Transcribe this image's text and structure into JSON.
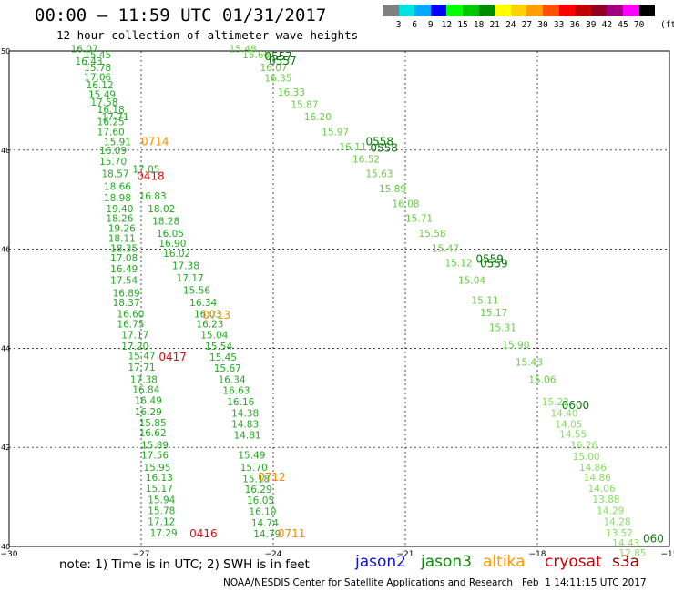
{
  "header": {
    "title": "00:00 — 11:59 UTC 01/31/2017",
    "subtitle": "12 hour collection of altimeter wave heights"
  },
  "legend": {
    "unit": "(ft)",
    "stops": [
      {
        "label": "3",
        "color": "#808080"
      },
      {
        "label": "6",
        "color": "#00e0e0"
      },
      {
        "label": "9",
        "color": "#00a8ff"
      },
      {
        "label": "12",
        "color": "#0000ff"
      },
      {
        "label": "15",
        "color": "#00ff00"
      },
      {
        "label": "18",
        "color": "#00c800"
      },
      {
        "label": "21",
        "color": "#008a00"
      },
      {
        "label": "24",
        "color": "#ffff00"
      },
      {
        "label": "27",
        "color": "#ffd200"
      },
      {
        "label": "30",
        "color": "#ffa000"
      },
      {
        "label": "33",
        "color": "#ff5000"
      },
      {
        "label": "36",
        "color": "#ff0000"
      },
      {
        "label": "39",
        "color": "#c00000"
      },
      {
        "label": "42",
        "color": "#900020"
      },
      {
        "label": "45",
        "color": "#a00080"
      },
      {
        "label": "70",
        "color": "#ff00ff"
      },
      {
        "label": "",
        "color": "#000000"
      }
    ]
  },
  "map": {
    "lon_ticks": [
      "−30",
      "−27",
      "−24",
      "−21",
      "−18",
      "−15"
    ],
    "lat_ticks": [
      "50",
      "48",
      "46",
      "44",
      "42",
      "40"
    ]
  },
  "chart_data": {
    "type": "scatter",
    "tracks": [
      {
        "name": "track-1",
        "color": "#22aa22",
        "points": [
          {
            "lon": -28.6,
            "lat": 49.97,
            "v": "16.07"
          },
          {
            "lon": -28.3,
            "lat": 49.85,
            "v": "15.45"
          },
          {
            "lon": -28.5,
            "lat": 49.72,
            "v": "16.43"
          },
          {
            "lon": -28.3,
            "lat": 49.6,
            "v": "15.78"
          },
          {
            "lon": -28.3,
            "lat": 49.4,
            "v": "17.06"
          },
          {
            "lon": -28.25,
            "lat": 49.25,
            "v": "16.12"
          },
          {
            "lon": -28.2,
            "lat": 49.05,
            "v": "15.49"
          },
          {
            "lon": -28.15,
            "lat": 48.9,
            "v": "17.58"
          },
          {
            "lon": -28.0,
            "lat": 48.75,
            "v": "16.18"
          },
          {
            "lon": -27.9,
            "lat": 48.6,
            "v": "17.71"
          },
          {
            "lon": -28.0,
            "lat": 48.5,
            "v": "16.25"
          },
          {
            "lon": -28.0,
            "lat": 48.3,
            "v": "17.60"
          },
          {
            "lon": -27.85,
            "lat": 48.1,
            "v": "15.91"
          },
          {
            "lon": -27.95,
            "lat": 47.92,
            "v": "16.09"
          },
          {
            "lon": -27.95,
            "lat": 47.7,
            "v": "15.70"
          },
          {
            "lon": -27.9,
            "lat": 47.45,
            "v": "18.57"
          },
          {
            "lon": -27.85,
            "lat": 47.2,
            "v": "18.66"
          },
          {
            "lon": -27.85,
            "lat": 46.97,
            "v": "18.98"
          },
          {
            "lon": -27.8,
            "lat": 46.75,
            "v": "19.40"
          },
          {
            "lon": -27.8,
            "lat": 46.55,
            "v": "18.26"
          },
          {
            "lon": -27.75,
            "lat": 46.35,
            "v": "19.26"
          },
          {
            "lon": -27.75,
            "lat": 46.15,
            "v": "18.11"
          },
          {
            "lon": -27.7,
            "lat": 45.95,
            "v": "18.35"
          },
          {
            "lon": -27.7,
            "lat": 45.75,
            "v": "17.08"
          },
          {
            "lon": -27.7,
            "lat": 45.53,
            "v": "16.49"
          },
          {
            "lon": -27.7,
            "lat": 45.3,
            "v": "17.54"
          },
          {
            "lon": -27.65,
            "lat": 45.05,
            "v": "16.89"
          },
          {
            "lon": -27.65,
            "lat": 44.85,
            "v": "18.37"
          },
          {
            "lon": -27.55,
            "lat": 44.62,
            "v": "16.60"
          },
          {
            "lon": -27.55,
            "lat": 44.42,
            "v": "16.75"
          },
          {
            "lon": -27.45,
            "lat": 44.2,
            "v": "17.17"
          },
          {
            "lon": -27.45,
            "lat": 43.97,
            "v": "17.20"
          },
          {
            "lon": -27.3,
            "lat": 43.78,
            "v": "15.47"
          },
          {
            "lon": -27.3,
            "lat": 43.55,
            "v": "17.71"
          },
          {
            "lon": -27.25,
            "lat": 43.3,
            "v": "17.38"
          },
          {
            "lon": -27.2,
            "lat": 43.1,
            "v": "16.84"
          },
          {
            "lon": -27.15,
            "lat": 42.88,
            "v": "16.49"
          },
          {
            "lon": -27.15,
            "lat": 42.65,
            "v": "16.29"
          },
          {
            "lon": -27.05,
            "lat": 42.43,
            "v": "15.85"
          },
          {
            "lon": -27.05,
            "lat": 42.22,
            "v": "16.62"
          },
          {
            "lon": -27.0,
            "lat": 41.98,
            "v": "15.89"
          },
          {
            "lon": -27.0,
            "lat": 41.77,
            "v": "17.56"
          },
          {
            "lon": -26.95,
            "lat": 41.53,
            "v": "15.95"
          },
          {
            "lon": -26.9,
            "lat": 41.32,
            "v": "16.13"
          },
          {
            "lon": -26.9,
            "lat": 41.1,
            "v": "15.17"
          },
          {
            "lon": -26.85,
            "lat": 40.87,
            "v": "15.94"
          },
          {
            "lon": -26.85,
            "lat": 40.65,
            "v": "15.78"
          },
          {
            "lon": -26.85,
            "lat": 40.43,
            "v": "17.12"
          },
          {
            "lon": -26.8,
            "lat": 40.2,
            "v": "17.29"
          }
        ]
      },
      {
        "name": "track-2",
        "color": "#22aa22",
        "points": [
          {
            "lon": -27.2,
            "lat": 47.55,
            "v": "17.05"
          },
          {
            "lon": -27.05,
            "lat": 47.0,
            "v": "16.83"
          },
          {
            "lon": -26.85,
            "lat": 46.75,
            "v": "18.02"
          },
          {
            "lon": -26.75,
            "lat": 46.5,
            "v": "18.28"
          },
          {
            "lon": -26.65,
            "lat": 46.25,
            "v": "16.05"
          },
          {
            "lon": -26.6,
            "lat": 46.05,
            "v": "16.90"
          },
          {
            "lon": -26.5,
            "lat": 45.85,
            "v": "16.02"
          },
          {
            "lon": -26.3,
            "lat": 45.6,
            "v": "17.38"
          },
          {
            "lon": -26.2,
            "lat": 45.35,
            "v": "17.17"
          },
          {
            "lon": -26.05,
            "lat": 45.1,
            "v": "15.56"
          },
          {
            "lon": -25.9,
            "lat": 44.85,
            "v": "16.34"
          },
          {
            "lon": -25.8,
            "lat": 44.62,
            "v": "16.03"
          },
          {
            "lon": -25.75,
            "lat": 44.42,
            "v": "16.23"
          },
          {
            "lon": -25.65,
            "lat": 44.2,
            "v": "15.04"
          },
          {
            "lon": -25.55,
            "lat": 43.97,
            "v": "15.54"
          },
          {
            "lon": -25.45,
            "lat": 43.75,
            "v": "15.45"
          },
          {
            "lon": -25.35,
            "lat": 43.53,
            "v": "15.67"
          },
          {
            "lon": -25.25,
            "lat": 43.3,
            "v": "16.34"
          },
          {
            "lon": -25.15,
            "lat": 43.08,
            "v": "16.63"
          },
          {
            "lon": -25.05,
            "lat": 42.85,
            "v": "16.16"
          },
          {
            "lon": -24.95,
            "lat": 42.62,
            "v": "14.38"
          },
          {
            "lon": -24.95,
            "lat": 42.4,
            "v": "14.83"
          },
          {
            "lon": -24.9,
            "lat": 42.18,
            "v": "14.81"
          },
          {
            "lon": -24.8,
            "lat": 41.77,
            "v": "15.49"
          },
          {
            "lon": -24.75,
            "lat": 41.53,
            "v": "15.70"
          },
          {
            "lon": -24.7,
            "lat": 41.3,
            "v": "15.18"
          },
          {
            "lon": -24.65,
            "lat": 41.08,
            "v": "16.29"
          },
          {
            "lon": -24.6,
            "lat": 40.86,
            "v": "16.05"
          },
          {
            "lon": -24.55,
            "lat": 40.63,
            "v": "16.10"
          },
          {
            "lon": -24.5,
            "lat": 40.4,
            "v": "14.74"
          },
          {
            "lon": -24.45,
            "lat": 40.18,
            "v": "14.79"
          }
        ]
      },
      {
        "name": "track-3",
        "color": "#66cc44",
        "points": [
          {
            "lon": -25.0,
            "lat": 49.97,
            "v": "15.48"
          },
          {
            "lon": -24.7,
            "lat": 49.85,
            "v": "15.66"
          },
          {
            "lon": -24.3,
            "lat": 49.6,
            "v": "16.07"
          },
          {
            "lon": -24.2,
            "lat": 49.38,
            "v": "16.35"
          },
          {
            "lon": -23.9,
            "lat": 49.1,
            "v": "16.33"
          },
          {
            "lon": -23.6,
            "lat": 48.85,
            "v": "15.87"
          },
          {
            "lon": -23.3,
            "lat": 48.6,
            "v": "16.20"
          },
          {
            "lon": -22.9,
            "lat": 48.3,
            "v": "15.97"
          },
          {
            "lon": -22.5,
            "lat": 48.0,
            "v": "16.11"
          },
          {
            "lon": -22.2,
            "lat": 47.75,
            "v": "16.52"
          },
          {
            "lon": -21.9,
            "lat": 47.45,
            "v": "15.63"
          },
          {
            "lon": -21.6,
            "lat": 47.15,
            "v": "15.89"
          },
          {
            "lon": -21.3,
            "lat": 46.85,
            "v": "16.08"
          },
          {
            "lon": -21.0,
            "lat": 46.55,
            "v": "15.71"
          },
          {
            "lon": -20.7,
            "lat": 46.25,
            "v": "15.58"
          },
          {
            "lon": -20.4,
            "lat": 45.95,
            "v": "15.47"
          },
          {
            "lon": -20.1,
            "lat": 45.65,
            "v": "15.12"
          },
          {
            "lon": -19.8,
            "lat": 45.3,
            "v": "15.04"
          },
          {
            "lon": -19.5,
            "lat": 44.9,
            "v": "15.11"
          },
          {
            "lon": -19.3,
            "lat": 44.65,
            "v": "15.17"
          },
          {
            "lon": -19.1,
            "lat": 44.35,
            "v": "15.31"
          },
          {
            "lon": -18.8,
            "lat": 44.0,
            "v": "15.90"
          },
          {
            "lon": -18.5,
            "lat": 43.65,
            "v": "15.43"
          },
          {
            "lon": -18.2,
            "lat": 43.3,
            "v": "15.06"
          }
        ]
      },
      {
        "name": "track-4",
        "color": "#88dd66",
        "points": [
          {
            "lon": -17.9,
            "lat": 42.85,
            "v": "15.22"
          },
          {
            "lon": -17.7,
            "lat": 42.62,
            "v": "14.40"
          },
          {
            "lon": -17.6,
            "lat": 42.4,
            "v": "14.05"
          },
          {
            "lon": -17.5,
            "lat": 42.2,
            "v": "14.55"
          },
          {
            "lon": -17.25,
            "lat": 41.98,
            "v": "16.26"
          },
          {
            "lon": -17.2,
            "lat": 41.75,
            "v": "15.00"
          },
          {
            "lon": -17.05,
            "lat": 41.53,
            "v": "14.86"
          },
          {
            "lon": -16.95,
            "lat": 41.32,
            "v": "14.86"
          },
          {
            "lon": -16.85,
            "lat": 41.1,
            "v": "14.06"
          },
          {
            "lon": -16.75,
            "lat": 40.88,
            "v": "13.88"
          },
          {
            "lon": -16.65,
            "lat": 40.65,
            "v": "14.29"
          },
          {
            "lon": -16.5,
            "lat": 40.43,
            "v": "14.28"
          },
          {
            "lon": -16.45,
            "lat": 40.2,
            "v": "13.52"
          },
          {
            "lon": -16.3,
            "lat": 40.0,
            "v": "14.43"
          },
          {
            "lon": -16.15,
            "lat": 39.8,
            "v": "12.85"
          }
        ]
      }
    ],
    "pass_labels": [
      {
        "lon": -24.2,
        "lat": 49.82,
        "text": "0557",
        "color": "#0a7a0a"
      },
      {
        "lon": -24.1,
        "lat": 49.72,
        "text": "0557",
        "color": "#0a7a0a"
      },
      {
        "lon": -21.9,
        "lat": 48.1,
        "text": "0558",
        "color": "#0a7a0a"
      },
      {
        "lon": -21.8,
        "lat": 47.97,
        "text": "0558",
        "color": "#0a7a0a"
      },
      {
        "lon": -19.4,
        "lat": 45.73,
        "text": "0559",
        "color": "#0a7a0a"
      },
      {
        "lon": -19.3,
        "lat": 45.63,
        "text": "0559",
        "color": "#0a7a0a"
      },
      {
        "lon": -17.45,
        "lat": 42.78,
        "text": "0600",
        "color": "#0a7a0a"
      },
      {
        "lon": -15.6,
        "lat": 40.08,
        "text": "060",
        "color": "#0a7a0a"
      },
      {
        "lon": -27.0,
        "lat": 48.1,
        "text": "0714",
        "color": "#ff8800"
      },
      {
        "lon": -27.1,
        "lat": 47.4,
        "text": "0418",
        "color": "#d81010"
      },
      {
        "lon": -25.6,
        "lat": 44.6,
        "text": "0713",
        "color": "#ff8800"
      },
      {
        "lon": -26.6,
        "lat": 43.75,
        "text": "0417",
        "color": "#d81010"
      },
      {
        "lon": -24.35,
        "lat": 41.32,
        "text": "0712",
        "color": "#ff8800"
      },
      {
        "lon": -25.9,
        "lat": 40.18,
        "text": "0416",
        "color": "#d81010"
      },
      {
        "lon": -23.9,
        "lat": 40.18,
        "text": "0711",
        "color": "#ff8800"
      }
    ]
  },
  "notes": {
    "text": "note: 1) Time is in UTC; 2) SWH is in feet"
  },
  "satellites": [
    {
      "label": "jason2",
      "color": "#1010d0"
    },
    {
      "label": "jason3",
      "color": "#0a8a0a"
    },
    {
      "label": "altika",
      "color": "#ff9900"
    },
    {
      "label": "cryosat",
      "color": "#cc0000"
    },
    {
      "label": "s3a",
      "color": "#990000"
    }
  ],
  "footer": {
    "text": "NOAA/NESDIS Center for Satellite Applications and Research   Feb  1 14:11:15 UTC 2017"
  }
}
